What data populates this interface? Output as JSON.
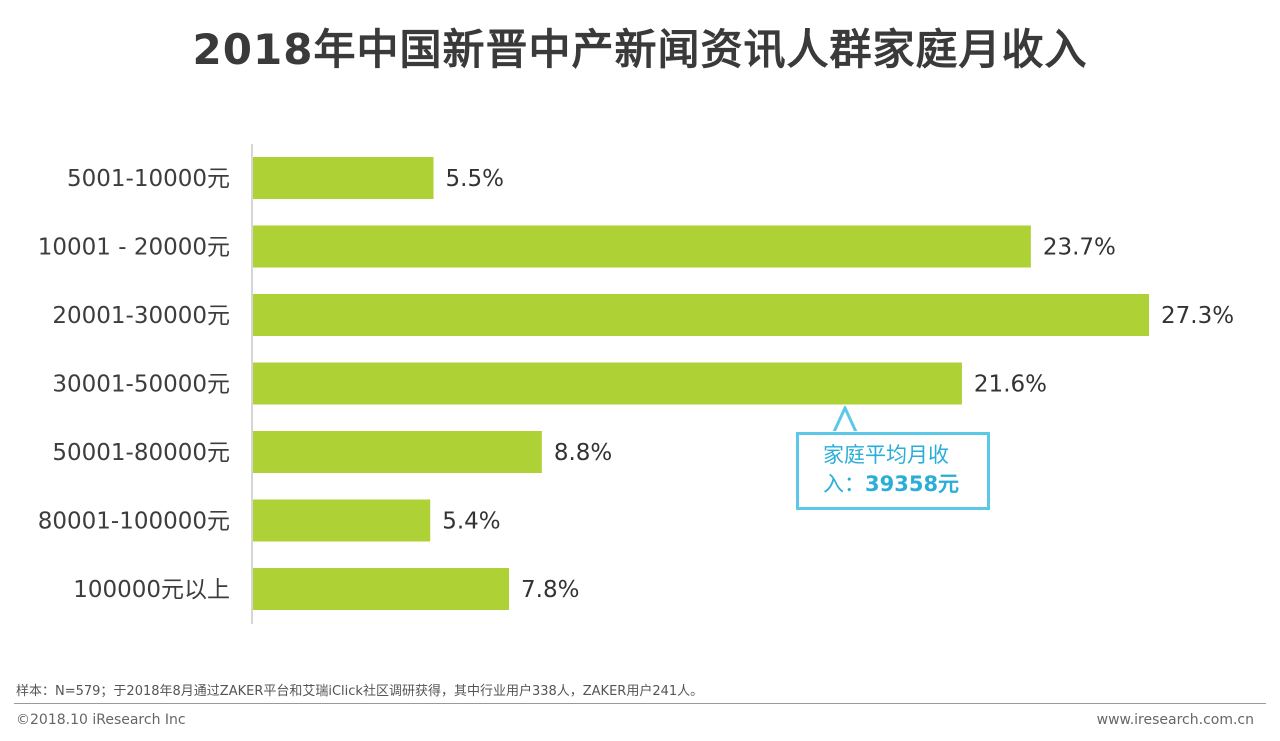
{
  "chart_data": {
    "type": "bar",
    "orientation": "horizontal",
    "title": "2018年中国新晋中产新闻资讯人群家庭月收入",
    "categories": [
      "5001-10000元",
      "10001 - 20000元",
      "20001-30000元",
      "30001-50000元",
      "50001-80000元",
      "80001-100000元",
      "100000元以上"
    ],
    "values": [
      5.5,
      23.7,
      27.3,
      21.6,
      8.8,
      5.4,
      7.8
    ],
    "value_labels": [
      "5.5%",
      "23.7%",
      "27.3%",
      "21.6%",
      "8.8%",
      "5.4%",
      "7.8%"
    ],
    "unit": "%",
    "xlim": [
      0,
      27.3
    ],
    "grid": false,
    "bar_color": "#aed136",
    "annotation": {
      "line1": "家庭平均月收",
      "line2_prefix": "入：",
      "line2_value": "39358元",
      "color": "#2aaed8",
      "border_color": "#5bc8e8"
    }
  },
  "footer": {
    "note": "样本：N=579；于2018年8月通过ZAKER平台和艾瑞iClick社区调研获得，其中行业用户338人，ZAKER用户241人。",
    "copyright": "©2018.10 iResearch Inc",
    "website": "www.iresearch.com.cn"
  }
}
